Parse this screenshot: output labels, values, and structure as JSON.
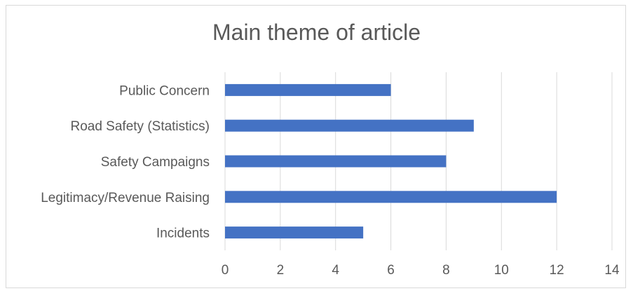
{
  "chart_data": {
    "type": "bar",
    "orientation": "horizontal",
    "title": "Main theme of article",
    "categories": [
      "Public Concern",
      "Road Safety (Statistics)",
      "Safety Campaigns",
      "Legitimacy/Revenue Raising",
      "Incidents"
    ],
    "values": [
      6,
      9,
      8,
      12,
      5
    ],
    "xlim": [
      0,
      14
    ],
    "xticks": [
      0,
      2,
      4,
      6,
      8,
      10,
      12,
      14
    ],
    "grid": "vertical",
    "legend": "none",
    "bar_color": "#4472c4",
    "gridline_color": "#d9d9d9",
    "text_color": "#595959"
  }
}
